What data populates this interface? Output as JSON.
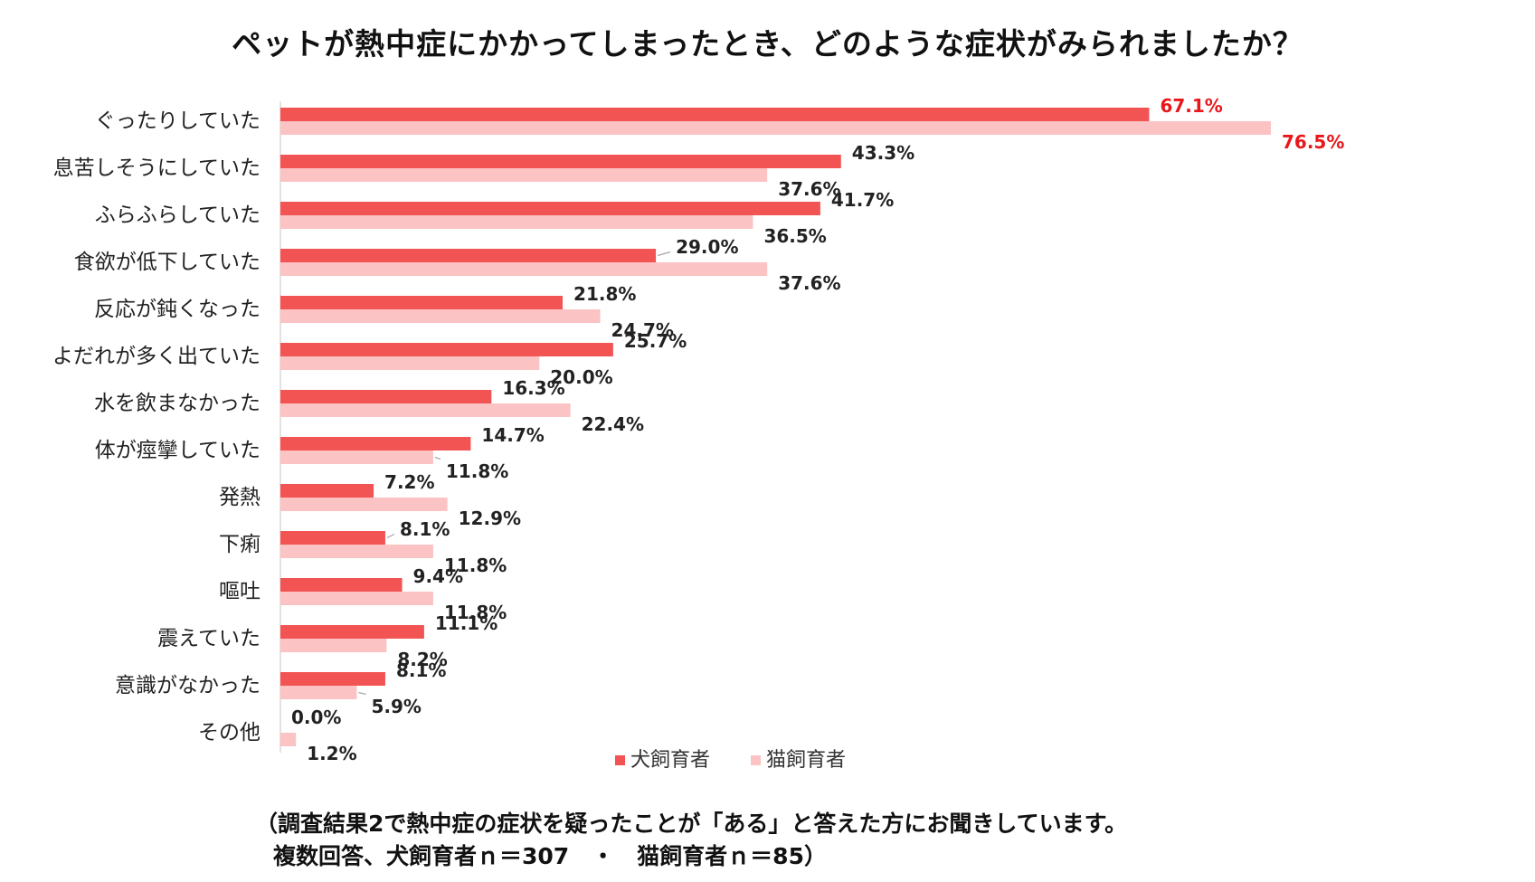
{
  "chart_data": {
    "type": "bar",
    "orientation": "horizontal",
    "title": "ペットが熱中症にかかってしまったとき、どのような症状がみられましたか？",
    "categories": [
      "ぐったりしていた",
      "息苦しそうにしていた",
      "ふらふらしていた",
      "食欲が低下していた",
      "反応が鈍くなった",
      "よだれが多く出ていた",
      "水を飲まなかった",
      "体が痙攣していた",
      "発熱",
      "下痢",
      "嘔吐",
      "震えていた",
      "意識がなかった",
      "その他"
    ],
    "series": [
      {
        "name": "犬飼育者",
        "color": "#f25353",
        "values": [
          67.1,
          43.3,
          41.7,
          29.0,
          21.8,
          25.7,
          16.3,
          14.7,
          7.2,
          8.1,
          9.4,
          11.1,
          8.1,
          0.0
        ],
        "labels": [
          "67.1%",
          "43.3%",
          "41.7%",
          "29.0%",
          "21.8%",
          "25.7%",
          "16.3%",
          "14.7%",
          "7.2%",
          "8.1%",
          "9.4%",
          "11.1%",
          "8.1%",
          "0.0%"
        ]
      },
      {
        "name": "猫飼育者",
        "color": "#fbc3c3",
        "values": [
          76.5,
          37.6,
          36.5,
          37.6,
          24.7,
          20.0,
          22.4,
          11.8,
          12.9,
          11.8,
          11.8,
          8.2,
          5.9,
          1.2
        ],
        "labels": [
          "76.5%",
          "37.6%",
          "36.5%",
          "37.6%",
          "24.7%",
          "20.0%",
          "22.4%",
          "11.8%",
          "12.9%",
          "11.8%",
          "11.8%",
          "8.2%",
          "5.9%",
          "1.2%"
        ]
      }
    ],
    "highlight_color": "#e8171b",
    "legend_position": "bottom",
    "grid": false
  },
  "footnote": {
    "line1": "（調査結果2で熱中症の症状を疑ったことが「ある」と答えた方にお聞きしています。",
    "line2": "複数回答、犬飼育者ｎ＝307　・　猫飼育者ｎ＝85）"
  }
}
